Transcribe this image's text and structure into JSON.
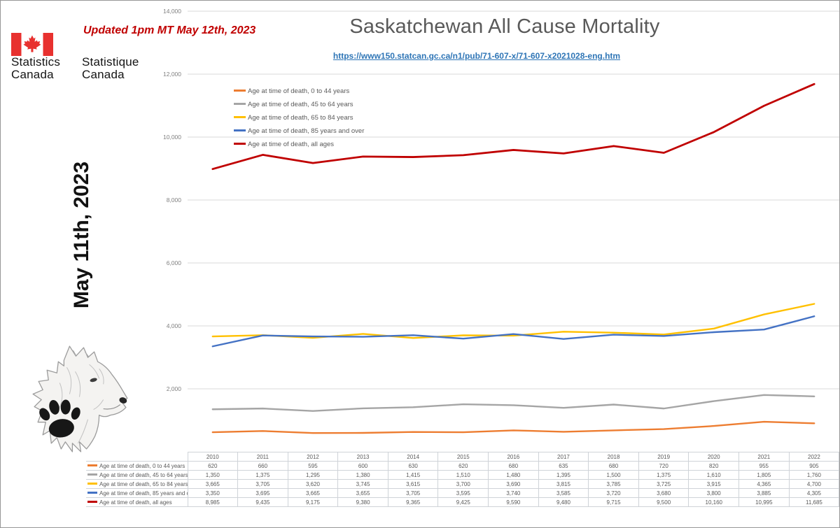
{
  "branding": {
    "flag_icon": "canada-flag-icon",
    "statistics": "Statistics",
    "canada_en": "Canada",
    "statistique": "Statistique",
    "canada_fr": "Canada"
  },
  "annotations": {
    "updated_note": "Updated 1pm MT May 12th, 2023",
    "date_vertical": "May 11th, 2023",
    "wolf_image": "pencil-sketch wolf head with black paw print"
  },
  "header": {
    "title": "Saskatchewan All Cause Mortality",
    "source_url": "https://www150.statcan.gc.ca/n1/pub/71-607-x/71-607-x2021028-eng.htm"
  },
  "colors": {
    "series_0_44": "#ED7D31",
    "series_45_64": "#A5A5A5",
    "series_65_84": "#FFC000",
    "series_85_over": "#4472C4",
    "series_all_ages": "#C00000",
    "updated_note_red": "#C00000",
    "title_gray": "#595959",
    "link_blue": "#2E75B6",
    "flag_red": "#E8312F",
    "gridline_gray": "#d9d9d9"
  },
  "chart_data": {
    "type": "line",
    "title": "Saskatchewan All Cause Mortality",
    "x": [
      2010,
      2011,
      2012,
      2013,
      2014,
      2015,
      2016,
      2017,
      2018,
      2019,
      2020,
      2021,
      2022
    ],
    "series": [
      {
        "name": "Age at time of death, 0 to 44 years",
        "color": "#ED7D31",
        "values": [
          620,
          660,
          595,
          600,
          630,
          620,
          680,
          635,
          680,
          720,
          820,
          955,
          905
        ]
      },
      {
        "name": "Age at time of death, 45 to 64 years",
        "color": "#A5A5A5",
        "values": [
          1350,
          1375,
          1295,
          1380,
          1415,
          1510,
          1480,
          1395,
          1500,
          1375,
          1610,
          1805,
          1760
        ]
      },
      {
        "name": "Age at time of death, 65 to 84 years",
        "color": "#FFC000",
        "values": [
          3665,
          3705,
          3620,
          3745,
          3615,
          3700,
          3690,
          3815,
          3785,
          3725,
          3915,
          4365,
          4700
        ]
      },
      {
        "name": "Age at time of death, 85 years and over",
        "color": "#4472C4",
        "values": [
          3350,
          3695,
          3665,
          3655,
          3705,
          3595,
          3740,
          3585,
          3720,
          3680,
          3800,
          3885,
          4305
        ]
      },
      {
        "name": "Age at time of death, all ages",
        "color": "#C00000",
        "values": [
          8985,
          9435,
          9175,
          9380,
          9365,
          9425,
          9590,
          9480,
          9715,
          9500,
          10160,
          10995,
          11685
        ]
      }
    ],
    "ylim": [
      0,
      14000
    ],
    "ytick_step": 2000,
    "ytick_labels": [
      "2,000",
      "4,000",
      "6,000",
      "8,000",
      "10,000",
      "12,000",
      "14,000"
    ],
    "grid": true,
    "legend_position": "inside-top-left",
    "data_table_shown": true
  }
}
